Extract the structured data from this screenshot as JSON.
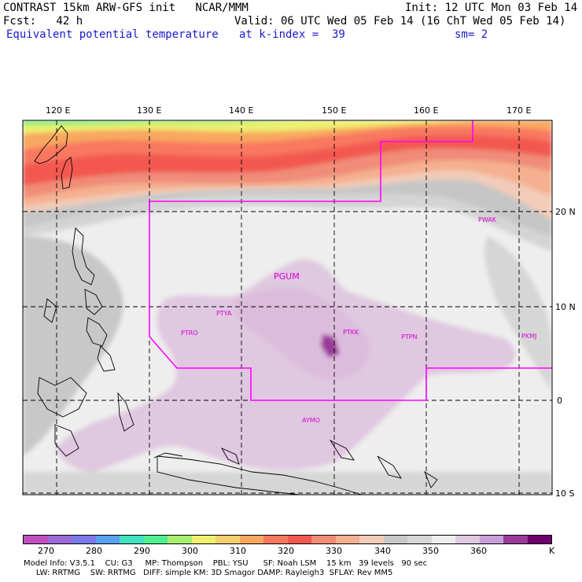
{
  "header": {
    "title": "CONTRAST 15km ARW-GFS init   NCAR/MMM",
    "init": "Init: 12 UTC Mon 03 Feb 14",
    "fcst_label": "Fcst:   42 h",
    "valid": "Valid: 06 UTC Wed 05 Feb 14 (16 ChT Wed 05 Feb 14)",
    "field": "Equivalent potential temperature",
    "level": "at k-index =  39",
    "smoothing": "sm= 2"
  },
  "map": {
    "lon_labels": [
      "120 E",
      "130 E",
      "140 E",
      "150 E",
      "160 E",
      "170 E"
    ],
    "lat_labels": [
      "20 N",
      "10 N",
      "0",
      "10 S"
    ],
    "stations": [
      "PGUM",
      "PTYA",
      "PTRO",
      "PTKK",
      "PTPN",
      "PKMJ",
      "PWAK",
      "AYMO"
    ],
    "boundary_color": "#ff00ff"
  },
  "colorbar": {
    "labels": [
      "270",
      "280",
      "290",
      "300",
      "310",
      "320",
      "330",
      "340",
      "350",
      "360",
      "K"
    ],
    "colors": [
      "#c050c0",
      "#9a6ad6",
      "#7a7ae8",
      "#5aa0ee",
      "#40e0c0",
      "#50ee90",
      "#a8ee70",
      "#eef070",
      "#f6d070",
      "#f8a860",
      "#f87860",
      "#f25850",
      "#f08c78",
      "#f4b090",
      "#f2ccb8",
      "#c8c8c8",
      "#d6d6d6",
      "#eeeeee",
      "#e0c8e0",
      "#c8a0d8",
      "#9a3a9a",
      "#700070"
    ]
  },
  "footer": {
    "line1": "Model Info: V3.5.1    CU: G3     MP: Thompson    PBL: YSU      SF: Noah LSM    15 km   39 levels   90 sec",
    "line2": "     LW: RRTMG    SW: RRTMG   DIFF: simple KM: 3D Smagor DAMP: Rayleigh3  SFLAY: Rev MM5"
  }
}
